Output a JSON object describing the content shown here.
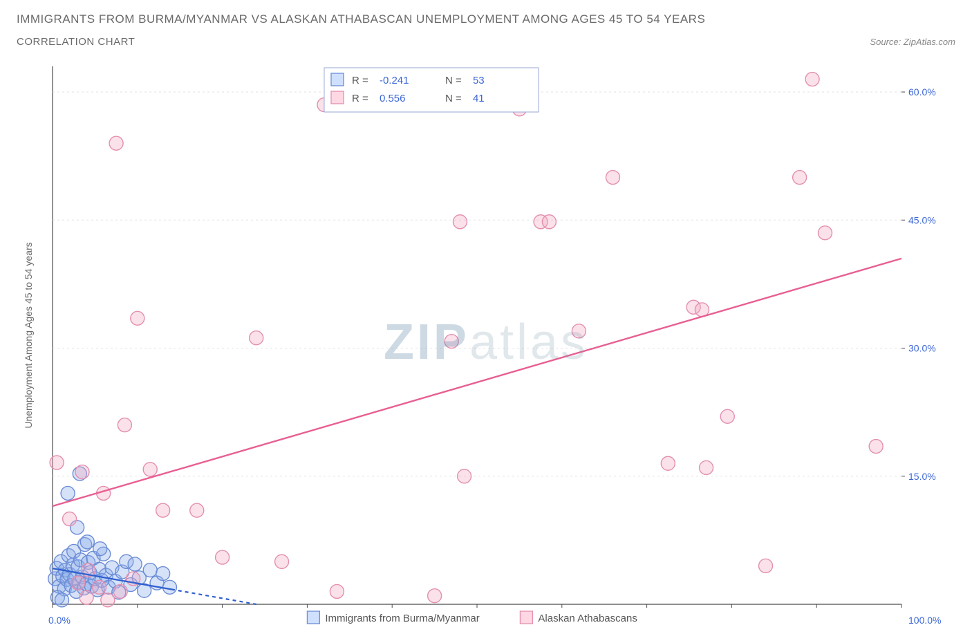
{
  "header": {
    "title": "IMMIGRANTS FROM BURMA/MYANMAR VS ALASKAN ATHABASCAN UNEMPLOYMENT AMONG AGES 45 TO 54 YEARS",
    "subtitle": "CORRELATION CHART",
    "source_prefix": "Source: ",
    "source_name": "ZipAtlas.com"
  },
  "watermark": {
    "zip": "ZIP",
    "atlas": "atlas"
  },
  "chart": {
    "type": "scatter",
    "background_color": "#ffffff",
    "grid_color": "#e2e2e2",
    "axis_color": "#4a4a4a",
    "xlim": [
      0,
      100
    ],
    "ylim": [
      0,
      63
    ],
    "x_ticks": [
      0
    ],
    "x_tick_labels": [
      "0.0%"
    ],
    "y_ticks": [
      15,
      30,
      45,
      60
    ],
    "y_tick_labels": [
      "15.0%",
      "30.0%",
      "45.0%",
      "60.0%"
    ],
    "x_label_100": "100.0%",
    "y_axis_label": "Unemployment Among Ages 45 to 54 years",
    "tick_label_color": "#3a66d6",
    "tick_font_size": 14,
    "ylabel_color": "#6a6a6a",
    "ylabel_font_size": 14,
    "marker_radius": 10,
    "marker_stroke_width": 1.4,
    "stats_legend": {
      "box_border": "#9aa7d6",
      "box_fill": "#ffffff",
      "rows": [
        {
          "swatch_fill": "#cfe0ff",
          "swatch_stroke": "#6c8cd5",
          "r_label": "R =",
          "r_value": "-0.241",
          "n_label": "N =",
          "n_value": "53"
        },
        {
          "swatch_fill": "#ffd8e4",
          "swatch_stroke": "#e38fb0",
          "r_label": "R =",
          "r_value": "0.556",
          "n_label": "N =",
          "n_value": "41"
        }
      ],
      "label_color": "#555",
      "value_color": "#3a66d6",
      "font_size": 15
    },
    "bottom_legend": {
      "items": [
        {
          "swatch_fill": "#cfe0ff",
          "swatch_stroke": "#6c8cd5",
          "label": "Immigrants from Burma/Myanmar"
        },
        {
          "swatch_fill": "#ffd8e4",
          "swatch_stroke": "#e38fb0",
          "label": "Alaskan Athabascans"
        }
      ],
      "label_color": "#555",
      "font_size": 15
    },
    "series": [
      {
        "name": "burma",
        "fill": "rgba(138,173,235,0.35)",
        "stroke": "#6c8cd5",
        "points": [
          [
            0.3,
            3.0
          ],
          [
            0.5,
            4.2
          ],
          [
            0.8,
            2.1
          ],
          [
            1.0,
            5.0
          ],
          [
            1.2,
            3.3
          ],
          [
            1.4,
            1.8
          ],
          [
            1.5,
            4.0
          ],
          [
            1.7,
            2.9
          ],
          [
            1.9,
            5.7
          ],
          [
            2.0,
            3.5
          ],
          [
            2.2,
            2.2
          ],
          [
            2.4,
            4.6
          ],
          [
            2.5,
            6.2
          ],
          [
            2.6,
            3.0
          ],
          [
            2.8,
            1.5
          ],
          [
            3.0,
            4.4
          ],
          [
            3.1,
            2.6
          ],
          [
            3.3,
            5.2
          ],
          [
            3.5,
            3.2
          ],
          [
            3.7,
            1.9
          ],
          [
            3.8,
            7.0
          ],
          [
            4.0,
            2.4
          ],
          [
            4.2,
            4.9
          ],
          [
            4.4,
            3.7
          ],
          [
            4.6,
            2.1
          ],
          [
            4.8,
            5.4
          ],
          [
            5.0,
            3.0
          ],
          [
            5.3,
            1.7
          ],
          [
            5.5,
            4.1
          ],
          [
            5.8,
            2.8
          ],
          [
            6.0,
            5.9
          ],
          [
            6.3,
            3.4
          ],
          [
            6.6,
            2.0
          ],
          [
            7.0,
            4.3
          ],
          [
            7.4,
            2.7
          ],
          [
            7.8,
            1.4
          ],
          [
            8.2,
            3.8
          ],
          [
            8.7,
            5.0
          ],
          [
            9.2,
            2.3
          ],
          [
            9.7,
            4.7
          ],
          [
            10.2,
            3.1
          ],
          [
            10.8,
            1.6
          ],
          [
            11.5,
            4.0
          ],
          [
            12.3,
            2.5
          ],
          [
            13.0,
            3.6
          ],
          [
            13.8,
            2.0
          ],
          [
            0.6,
            0.8
          ],
          [
            1.1,
            0.5
          ],
          [
            1.8,
            13.0
          ],
          [
            3.2,
            15.3
          ],
          [
            2.9,
            9.0
          ],
          [
            4.1,
            7.3
          ],
          [
            5.6,
            6.5
          ]
        ],
        "trend": {
          "x1": 0,
          "y1": 4.2,
          "x2": 24,
          "y2": 0,
          "solid_until_x": 14,
          "stroke": "#2f5fcf",
          "width": 2.2
        }
      },
      {
        "name": "athabascan",
        "fill": "rgba(243,170,195,0.35)",
        "stroke": "#e38fb0",
        "points": [
          [
            0.5,
            16.6
          ],
          [
            2.0,
            10.0
          ],
          [
            3.0,
            2.5
          ],
          [
            3.5,
            15.5
          ],
          [
            4.2,
            4.0
          ],
          [
            5.5,
            2.0
          ],
          [
            6.0,
            13.0
          ],
          [
            7.5,
            54.0
          ],
          [
            8.5,
            21.0
          ],
          [
            10.0,
            33.5
          ],
          [
            11.5,
            15.8
          ],
          [
            13.0,
            11.0
          ],
          [
            17.0,
            11.0
          ],
          [
            20.0,
            5.5
          ],
          [
            24.0,
            31.2
          ],
          [
            27.0,
            5.0
          ],
          [
            32.0,
            58.5
          ],
          [
            33.5,
            1.5
          ],
          [
            45.0,
            1.0
          ],
          [
            47.0,
            30.8
          ],
          [
            48.0,
            44.8
          ],
          [
            48.5,
            15.0
          ],
          [
            55.0,
            58.0
          ],
          [
            57.5,
            44.8
          ],
          [
            58.5,
            44.8
          ],
          [
            62.0,
            32.0
          ],
          [
            66.0,
            50.0
          ],
          [
            72.5,
            16.5
          ],
          [
            75.5,
            34.8
          ],
          [
            76.5,
            34.5
          ],
          [
            77.0,
            16.0
          ],
          [
            79.5,
            22.0
          ],
          [
            84.0,
            4.5
          ],
          [
            88.0,
            50.0
          ],
          [
            89.5,
            61.5
          ],
          [
            91.0,
            43.5
          ],
          [
            97.0,
            18.5
          ],
          [
            4.0,
            0.8
          ],
          [
            6.5,
            0.5
          ],
          [
            8.0,
            1.5
          ],
          [
            9.5,
            3.0
          ]
        ],
        "trend": {
          "x1": 0,
          "y1": 11.5,
          "x2": 100,
          "y2": 40.5,
          "stroke": "#e85f92",
          "width": 2.4
        }
      }
    ]
  }
}
